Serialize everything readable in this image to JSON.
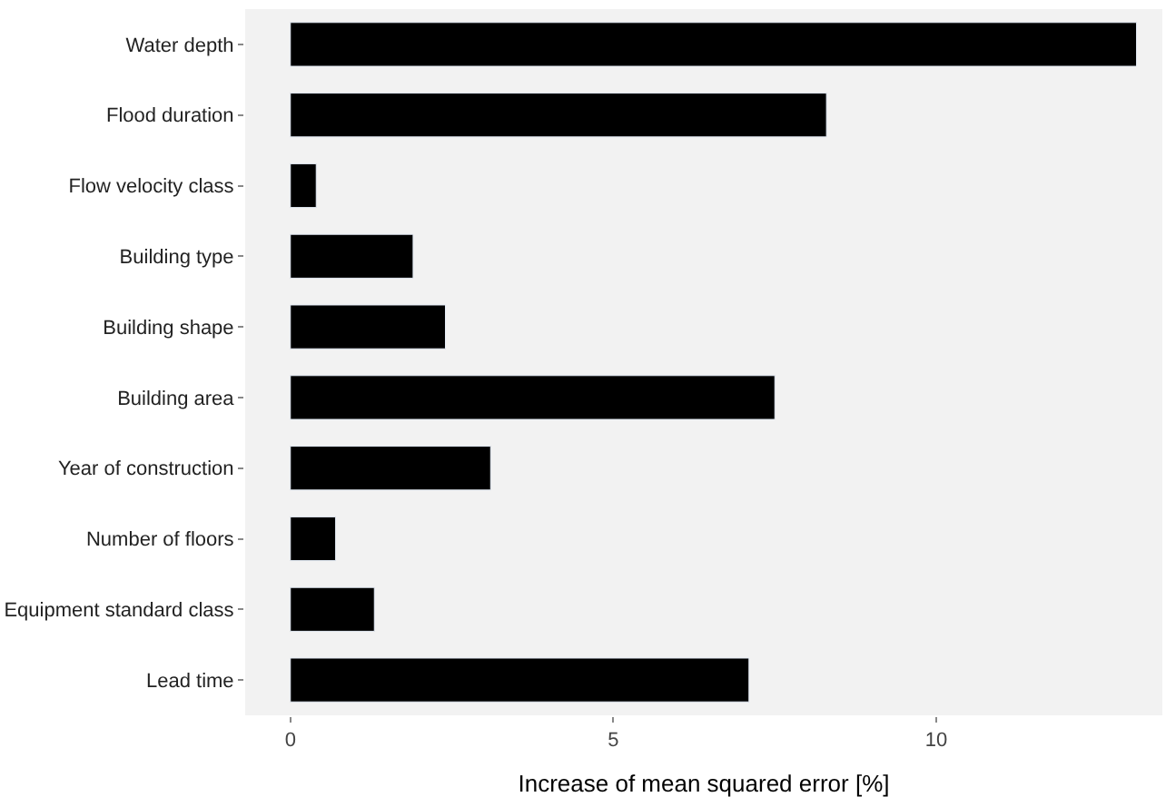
{
  "chart_data": {
    "type": "bar",
    "orientation": "horizontal",
    "categories": [
      "Water depth",
      "Flood duration",
      "Flow velocity class",
      "Building type",
      "Building shape",
      "Building area",
      "Year of construction",
      "Number of floors",
      "Equipment standard class",
      "Lead time"
    ],
    "values": [
      13.1,
      8.3,
      0.4,
      1.9,
      2.4,
      7.5,
      3.1,
      0.7,
      1.3,
      7.1
    ],
    "color": "#000000",
    "xlabel": "Increase of mean squared error [%]",
    "xlim": [
      -0.7,
      13.5
    ],
    "xticks": [
      0,
      5,
      10
    ],
    "grid": false,
    "legend": false
  }
}
